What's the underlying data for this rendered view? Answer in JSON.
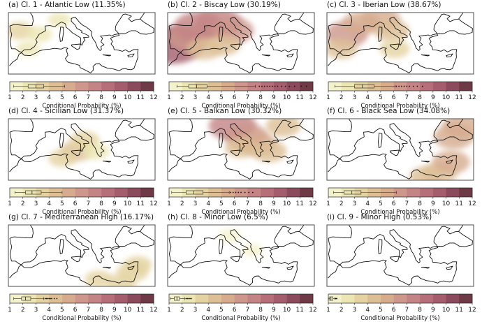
{
  "colors": {
    "colormap": [
      "#f4f2cc",
      "#ece6b4",
      "#e4d3a0",
      "#ddbf95",
      "#d6ab8e",
      "#cd978b",
      "#c48485",
      "#b66f79",
      "#a35d6c",
      "#8c4a5d",
      "#6e3a45"
    ],
    "coast": "#111111",
    "box": "#222222"
  },
  "chart_data": [
    {
      "type": "heatmap",
      "title": "(a) Cl. 1 - Atlantic Low (11.35%)",
      "colorbar": {
        "label": "Conditional Probability (%)",
        "ticks": [
          "1",
          "2",
          "3",
          "4",
          "5",
          "6",
          "7",
          "8",
          "9",
          "10",
          "11",
          "12"
        ],
        "range": [
          1,
          12
        ]
      },
      "distribution": {
        "whisker_low": 1.3,
        "q1": 2.4,
        "median": 3.0,
        "q3": 3.6,
        "whisker_high": 5.2,
        "outliers": []
      },
      "hotspots": [
        {
          "lon": -6,
          "lat": 42,
          "value": 3.2
        },
        {
          "lon": 1,
          "lat": 41,
          "value": 2.6
        },
        {
          "lon": -3,
          "lat": 37,
          "value": 2.2
        },
        {
          "lon": 8,
          "lat": 45,
          "value": 2.0
        }
      ]
    },
    {
      "type": "heatmap",
      "title": "(b) Cl. 2 - Biscay Low (30.19%)",
      "colorbar": {
        "label": "Conditional Probability (%)",
        "ticks": [
          "1",
          "2",
          "3",
          "4",
          "5",
          "6",
          "7",
          "8",
          "9",
          "10",
          "11",
          "12"
        ],
        "range": [
          1,
          12
        ]
      },
      "distribution": {
        "whisker_low": 1.6,
        "q1": 2.5,
        "median": 3.1,
        "q3": 3.9,
        "whisker_high": 7.6,
        "outliers": [
          7.9,
          8.1,
          8.3,
          8.5,
          8.7,
          8.9,
          9.1,
          9.3,
          9.6,
          9.9,
          10.2,
          10.6,
          11.1,
          11.5
        ]
      },
      "hotspots": [
        {
          "lon": -8,
          "lat": 38,
          "value": 9.5
        },
        {
          "lon": -2,
          "lat": 40,
          "value": 6.5
        },
        {
          "lon": 1,
          "lat": 43,
          "value": 7.5
        },
        {
          "lon": 8,
          "lat": 44,
          "value": 7.0
        },
        {
          "lon": 13,
          "lat": 42,
          "value": 6.0
        },
        {
          "lon": 3,
          "lat": 37,
          "value": 4.5
        },
        {
          "lon": 10,
          "lat": 38,
          "value": 4.0
        }
      ]
    },
    {
      "type": "heatmap",
      "title": "(c) Cl. 3 - Iberian Low (38.67%)",
      "colorbar": {
        "label": "Conditional Probability (%)",
        "ticks": [
          "1",
          "2",
          "3",
          "4",
          "5",
          "6",
          "7",
          "8",
          "9",
          "10",
          "11",
          "12"
        ],
        "range": [
          1,
          12
        ]
      },
      "distribution": {
        "whisker_low": 1.5,
        "q1": 3.0,
        "median": 3.6,
        "q3": 4.5,
        "whisker_high": 6.1,
        "outliers": [
          6.2,
          6.4,
          6.6,
          6.8,
          7.0,
          7.2,
          7.5,
          7.8,
          8.2
        ]
      },
      "hotspots": [
        {
          "lon": -3,
          "lat": 41,
          "value": 6.0
        },
        {
          "lon": 2,
          "lat": 44,
          "value": 5.0
        },
        {
          "lon": 9,
          "lat": 45,
          "value": 5.5
        },
        {
          "lon": 13,
          "lat": 42,
          "value": 4.5
        },
        {
          "lon": -5,
          "lat": 37,
          "value": 4.0
        },
        {
          "lon": 14,
          "lat": 37,
          "value": 3.5
        }
      ]
    },
    {
      "type": "heatmap",
      "title": "(d) Cl. 4 - Sicilian Low (31.37%)",
      "colorbar": {
        "label": "Conditional Probability (%)",
        "ticks": [
          "1",
          "2",
          "3",
          "4",
          "5",
          "6",
          "7",
          "8",
          "9",
          "10",
          "11",
          "12"
        ],
        "range": [
          1,
          12
        ]
      },
      "distribution": {
        "whisker_low": 1.4,
        "q1": 2.2,
        "median": 2.7,
        "q3": 3.4,
        "whisker_high": 5.0,
        "outliers": []
      },
      "hotspots": [
        {
          "lon": 14,
          "lat": 38,
          "value": 4.0
        },
        {
          "lon": 17,
          "lat": 41,
          "value": 3.5
        },
        {
          "lon": 9,
          "lat": 36,
          "value": 3.0
        },
        {
          "lon": 21,
          "lat": 38,
          "value": 2.8
        }
      ]
    },
    {
      "type": "heatmap",
      "title": "(e) Cl. 5 - Balkan Low (30.32%)",
      "colorbar": {
        "label": "Conditional Probability (%)",
        "ticks": [
          "1",
          "2",
          "3",
          "4",
          "5",
          "6",
          "7",
          "8",
          "9",
          "10",
          "11",
          "12"
        ],
        "range": [
          1,
          12
        ]
      },
      "distribution": {
        "whisker_low": 1.2,
        "q1": 2.3,
        "median": 2.9,
        "q3": 3.6,
        "whisker_high": 5.6,
        "outliers": [
          5.7,
          5.9,
          6.1,
          6.3,
          6.5,
          6.8,
          7.1,
          7.4
        ]
      },
      "hotspots": [
        {
          "lon": 13,
          "lat": 45,
          "value": 7.0
        },
        {
          "lon": 18,
          "lat": 42,
          "value": 6.0
        },
        {
          "lon": 22,
          "lat": 40,
          "value": 5.0
        },
        {
          "lon": 26,
          "lat": 38,
          "value": 4.5
        },
        {
          "lon": 31,
          "lat": 45,
          "value": 4.5
        },
        {
          "lon": 16,
          "lat": 39,
          "value": 4.0
        }
      ]
    },
    {
      "type": "heatmap",
      "title": "(f) Cl. 6 - Black Sea Low (34.08%)",
      "colorbar": {
        "label": "Conditional Probability (%)",
        "ticks": [
          "1",
          "2",
          "3",
          "4",
          "5",
          "6",
          "7",
          "8",
          "9",
          "10",
          "11",
          "12"
        ],
        "range": [
          1,
          12
        ]
      },
      "distribution": {
        "whisker_low": 1.4,
        "q1": 2.2,
        "median": 2.8,
        "q3": 3.5,
        "whisker_high": 6.2,
        "outliers": []
      },
      "hotspots": [
        {
          "lon": 35,
          "lat": 42,
          "value": 5.5
        },
        {
          "lon": 38,
          "lat": 45,
          "value": 5.5
        },
        {
          "lon": 30,
          "lat": 32,
          "value": 4.5
        },
        {
          "lon": 25,
          "lat": 31,
          "value": 4.0
        },
        {
          "lon": 34,
          "lat": 35,
          "value": 5.0
        }
      ]
    },
    {
      "type": "heatmap",
      "title": "(g) Cl. 7 - Mediterranean High (16.17%)",
      "colorbar": {
        "label": "Conditional Probability (%)",
        "ticks": [
          "1",
          "2",
          "3",
          "4",
          "5",
          "6",
          "7",
          "8",
          "9",
          "10",
          "11",
          "12"
        ],
        "range": [
          1,
          12
        ]
      },
      "distribution": {
        "whisker_low": 1.3,
        "q1": 1.9,
        "median": 2.2,
        "q3": 2.6,
        "whisker_high": 3.6,
        "outliers": [
          3.7,
          3.8,
          3.9,
          4.0,
          4.1,
          4.2,
          4.4,
          4.6
        ]
      },
      "hotspots": [
        {
          "lon": 30,
          "lat": 31,
          "value": 3.5
        },
        {
          "lon": 34,
          "lat": 34,
          "value": 3.8
        },
        {
          "lon": 22,
          "lat": 32,
          "value": 3.0
        },
        {
          "lon": 36,
          "lat": 36,
          "value": 3.0
        }
      ]
    },
    {
      "type": "heatmap",
      "title": "(h) Cl. 8 - Minor Low (6.5%)",
      "colorbar": {
        "label": "Conditional Probability (%)",
        "ticks": [
          "1",
          "2",
          "3",
          "4",
          "5",
          "6",
          "7",
          "8",
          "9",
          "10",
          "11",
          "12"
        ],
        "range": [
          1,
          12
        ]
      },
      "distribution": {
        "whisker_low": 1.1,
        "q1": 1.4,
        "median": 1.6,
        "q3": 1.8,
        "whisker_high": 2.2,
        "outliers": [
          2.3,
          2.4,
          2.5,
          2.6,
          2.7
        ]
      },
      "hotspots": [
        {
          "lon": 12,
          "lat": 44,
          "value": 1.8
        },
        {
          "lon": 20,
          "lat": 40,
          "value": 1.6
        }
      ]
    },
    {
      "type": "heatmap",
      "title": "(i) Cl. 9 - Minor High (0.53%)",
      "colorbar": {
        "label": "Conditional Probability (%)",
        "ticks": [
          "1",
          "2",
          "3",
          "4",
          "5",
          "6",
          "7",
          "8",
          "9",
          "10",
          "11",
          "12"
        ],
        "range": [
          1,
          12
        ]
      },
      "distribution": {
        "whisker_low": 1.0,
        "q1": 1.1,
        "median": 1.2,
        "q3": 1.35,
        "whisker_high": 1.5,
        "outliers": [
          1.55,
          1.6,
          1.65
        ]
      },
      "hotspots": []
    }
  ]
}
